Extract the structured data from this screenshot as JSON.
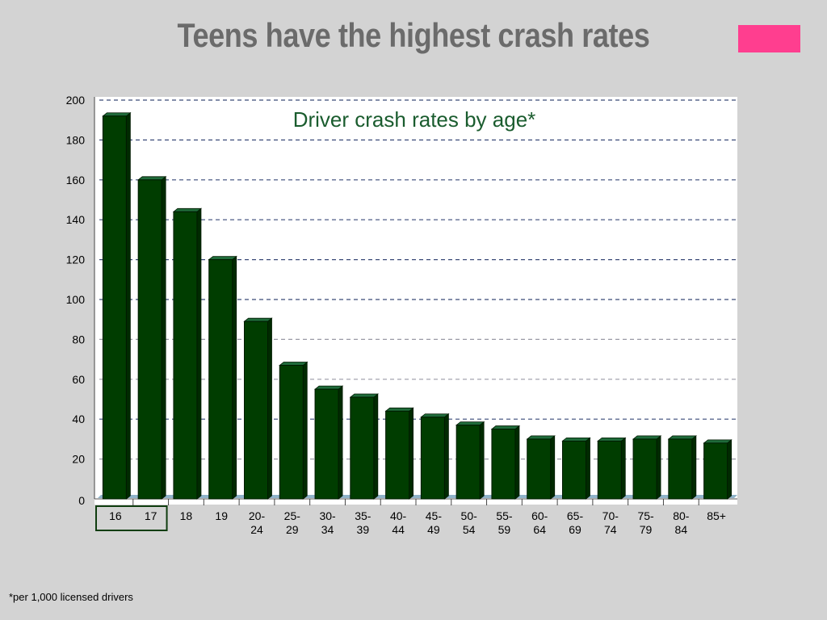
{
  "slide": {
    "title": "Teens have the highest crash rates",
    "footnote": "*per 1,000 licensed drivers",
    "accent_color": "#ff3e8f"
  },
  "chart_data": {
    "type": "bar",
    "title": "Driver crash rates by age*",
    "categories": [
      "16",
      "17",
      "18",
      "19",
      "20-24",
      "25-29",
      "30-34",
      "35-39",
      "40-44",
      "45-49",
      "50-54",
      "55-59",
      "60-64",
      "65-69",
      "70-74",
      "75-79",
      "80-84",
      "85+"
    ],
    "values": [
      192,
      160,
      144,
      120,
      89,
      67,
      55,
      51,
      44,
      41,
      37,
      35,
      30,
      29,
      29,
      30,
      30,
      28
    ],
    "xlabel": "",
    "ylabel": "",
    "ylim": [
      0,
      200
    ],
    "yticks": [
      0,
      20,
      40,
      60,
      80,
      100,
      120,
      140,
      160,
      180,
      200
    ],
    "grid": true,
    "highlighted_categories": [
      "16",
      "17"
    ],
    "bar_color": "#003d00",
    "title_color": "#1a5c2e"
  }
}
